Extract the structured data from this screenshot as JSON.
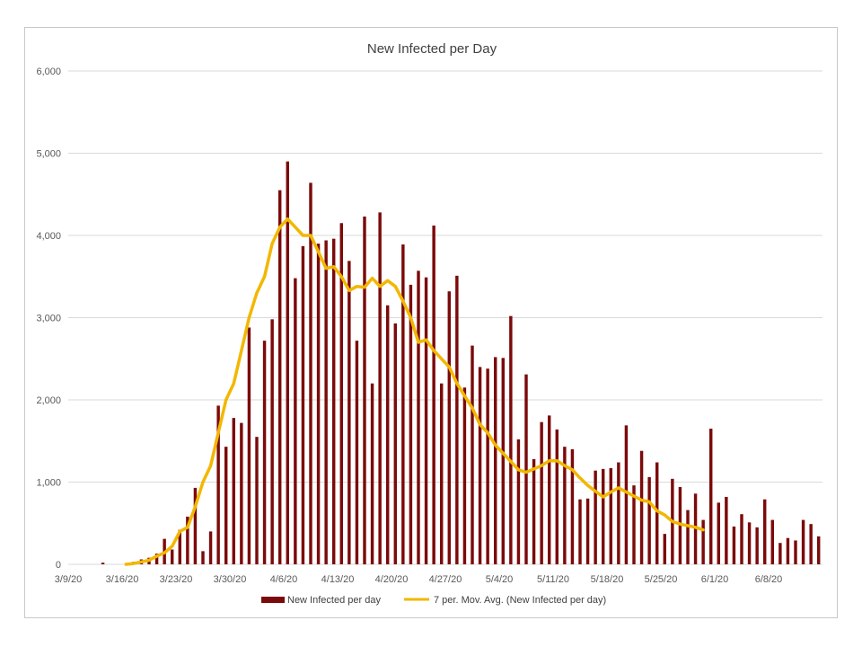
{
  "chart_data": {
    "type": "bar",
    "title": "New Infected per Day",
    "xlabel": "",
    "ylabel": "",
    "ylim": [
      0,
      6000
    ],
    "yticks": [
      "0",
      "1,000",
      "2,000",
      "3,000",
      "4,000",
      "5,000",
      "6,000"
    ],
    "x_tick_labels": [
      "3/9/20",
      "3/16/20",
      "3/23/20",
      "3/30/20",
      "4/6/20",
      "4/13/20",
      "4/20/20",
      "4/27/20",
      "5/4/20",
      "5/11/20",
      "5/18/20",
      "5/25/20",
      "6/1/20",
      "6/8/20"
    ],
    "x_tick_day_index": [
      0,
      7,
      14,
      21,
      28,
      35,
      42,
      49,
      56,
      63,
      70,
      77,
      84,
      91
    ],
    "start_date": "3/9/20",
    "legend_position": "bottom",
    "grid": true,
    "colors": {
      "bars": "#7b0a0a",
      "line": "#f2b700",
      "grid": "#d9d9d9"
    },
    "series": [
      {
        "name": "New Infected per day",
        "kind": "bar",
        "values": [
          0,
          0,
          0,
          0,
          20,
          0,
          0,
          0,
          30,
          60,
          80,
          130,
          310,
          180,
          420,
          580,
          930,
          160,
          400,
          1930,
          1430,
          1780,
          1720,
          2880,
          1550,
          2720,
          2980,
          4550,
          4900,
          3480,
          3870,
          4640,
          3900,
          3940,
          3960,
          4150,
          3690,
          2720,
          4230,
          2200,
          4280,
          3150,
          2930,
          3890,
          3400,
          3570,
          3490,
          4120,
          2200,
          3320,
          3510,
          2150,
          2660,
          2400,
          2380,
          2520,
          2510,
          3020,
          1520,
          2310,
          1280,
          1730,
          1810,
          1640,
          1430,
          1400,
          790,
          800,
          1140,
          1160,
          1170,
          1240,
          1690,
          960,
          1380,
          1060,
          1240,
          370,
          1040,
          940,
          660,
          860,
          540,
          1650,
          750,
          820,
          460,
          610,
          510,
          450,
          790,
          540,
          260,
          320,
          290,
          540,
          490,
          340
        ]
      },
      {
        "name": "7 per. Mov. Avg. (New Infected per day)",
        "kind": "line",
        "values": [
          null,
          null,
          null,
          null,
          null,
          null,
          null,
          0,
          10,
          30,
          50,
          100,
          140,
          220,
          400,
          450,
          700,
          1000,
          1200,
          1600,
          2000,
          2200,
          2600,
          3000,
          3300,
          3500,
          3900,
          4100,
          4200,
          4100,
          4000,
          4000,
          3800,
          3600,
          3620,
          3500,
          3330,
          3380,
          3370,
          3480,
          3380,
          3450,
          3380,
          3200,
          3000,
          2700,
          2730,
          2600,
          2500,
          2400,
          2200,
          2050,
          1900,
          1700,
          1600,
          1450,
          1350,
          1250,
          1150,
          1120,
          1160,
          1200,
          1260,
          1260,
          1200,
          1150,
          1050,
          960,
          890,
          820,
          880,
          930,
          880,
          830,
          780,
          760,
          650,
          600,
          520,
          490,
          470,
          450,
          420
        ]
      }
    ]
  }
}
